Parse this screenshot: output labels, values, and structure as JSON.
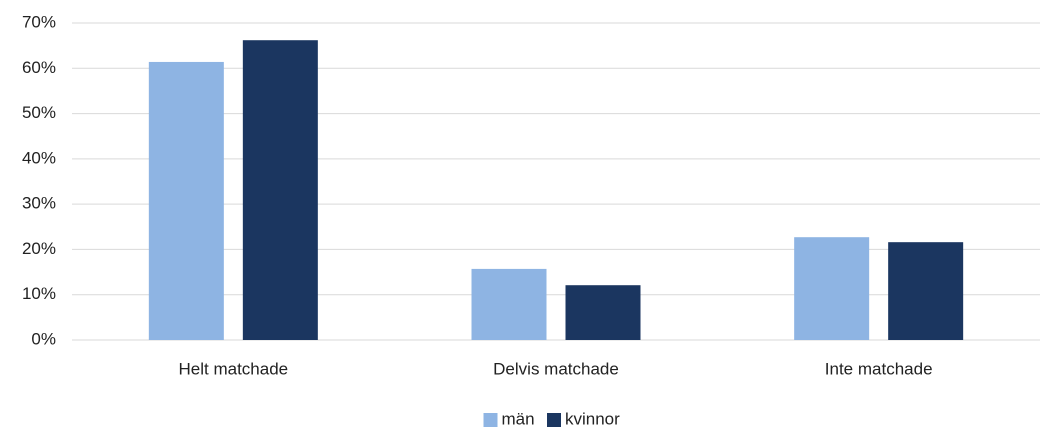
{
  "chart_data": {
    "type": "bar",
    "categories": [
      "Helt matchade",
      "Delvis matchade",
      "Inte matchade"
    ],
    "series": [
      {
        "name": "män",
        "color": "#8eb4e3",
        "values": [
          61.4,
          15.7,
          22.7
        ]
      },
      {
        "name": "kvinnor",
        "color": "#1b3660",
        "values": [
          66.2,
          12.1,
          21.6
        ]
      }
    ],
    "ylim": [
      0,
      70
    ],
    "yticks": [
      {
        "value": 0,
        "label": "0%"
      },
      {
        "value": 10,
        "label": "10%"
      },
      {
        "value": 20,
        "label": "20%"
      },
      {
        "value": 30,
        "label": "30%"
      },
      {
        "value": 40,
        "label": "40%"
      },
      {
        "value": 50,
        "label": "50%"
      },
      {
        "value": 60,
        "label": "60%"
      },
      {
        "value": 70,
        "label": "70%"
      }
    ],
    "grid": true,
    "legend": "bottom"
  }
}
